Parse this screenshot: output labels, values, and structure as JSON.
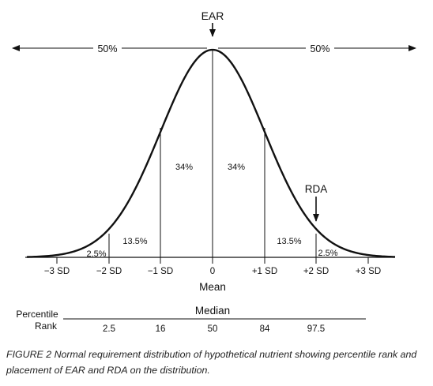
{
  "figure": {
    "ear_label": "EAR",
    "rda_label": "RDA",
    "half_left": "50%",
    "half_right": "50%",
    "axis_ticks": [
      "−3 SD",
      "−2 SD",
      "−1 SD",
      "0",
      "+1 SD",
      "+2 SD",
      "+3 SD"
    ],
    "axis_title": "Mean",
    "area_percents": {
      "left_tail": "2.5%",
      "left_mid": "13.5%",
      "left_center": "34%",
      "right_center": "34%",
      "right_mid": "13.5%",
      "right_tail": "2.5%"
    },
    "percentile": {
      "row_label_line1": "Percentile",
      "row_label_line2": "Rank",
      "header": "Median",
      "values": [
        "2.5",
        "16",
        "50",
        "84",
        "97.5"
      ]
    }
  },
  "caption": {
    "text": "FIGURE 2  Normal requirement distribution of hypothetical nutrient showing percentile rank and placement of EAR and RDA on the distribution."
  },
  "colors": {
    "ink": "#111111",
    "caption": "#222222"
  }
}
